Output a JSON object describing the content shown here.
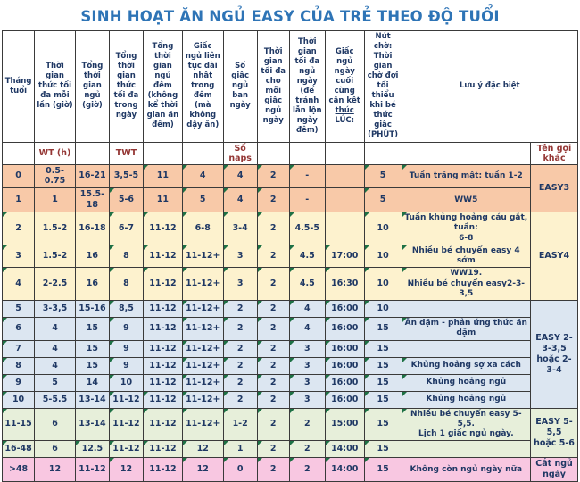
{
  "title": "SINH HOẠT ĂN NGỦ EASY CỦA TRẺ THEO ĐỘ TUỔI",
  "colors": {
    "title": "#2E74B6",
    "header_text": "#1F3864",
    "subheader_text": "#943634",
    "data_text": "#1F3864",
    "marker_green": "#1E7145",
    "band_easy3": "#F8C9A8",
    "band_easy4": "#FDF2CE",
    "band_easy235": "#DCE6F1",
    "band_easy55": "#E7EFDA",
    "band_cut": "#F8C7E1"
  },
  "headers": [
    "Tháng tuổi",
    "Thời gian thức tối đa mỗi lần (giờ)",
    "Tổng thời gian ngủ (giờ)",
    "Tổng thời gian thức tối đa trong ngày",
    "Tổng thời gian ngủ đêm (không kể thời gian ăn đêm)",
    "Giấc ngủ liên tục dài nhất trong đêm (mà không dậy ăn)",
    "Số giấc ngủ ban ngày",
    "Thời gian tối đa cho mỗi giấc ngủ ngày",
    "Thời gian tối đa ngủ ngày (để tránh lẫn lộn ngày đêm)",
    {
      "pre": "Giấc ngủ ngày cuối cùng cần ",
      "u": "kết thúc",
      "post": " LÚC:"
    },
    "Nút chờ: Thời gian chờ đợi tối thiểu khi bé thức giấc (PHÚT)",
    "Lưu ý đặc biệt"
  ],
  "subheader": [
    "",
    "WT (h)",
    "",
    "TWT",
    "",
    "",
    "Số naps",
    "",
    "",
    "",
    "",
    "",
    "Tên gọi khác"
  ],
  "rows": [
    {
      "band": "easy3",
      "tri": [
        4,
        5,
        6,
        7,
        8,
        10,
        11,
        12
      ],
      "cells": [
        "0",
        "0.5-0.75",
        "16-21",
        "3,5-5",
        "11",
        "4",
        "4",
        "2",
        "-",
        "",
        "5",
        "Tuần trăng mật: tuần 1-2"
      ],
      "group": {
        "label": "EASY3",
        "span": 2
      }
    },
    {
      "band": "easy3",
      "tri": [
        3,
        5,
        6,
        7,
        10
      ],
      "cells": [
        "1",
        "1",
        "15.5-18",
        "5-6",
        "11",
        "5",
        "4",
        "2",
        "-",
        "",
        "5",
        "WW5"
      ]
    },
    {
      "band": "easy4",
      "tri": [
        0,
        3,
        4,
        5,
        6,
        7,
        8,
        10,
        11
      ],
      "cells": [
        "2",
        "1.5-2",
        "16-18",
        "6-7",
        "11-12",
        "6-8",
        "3-4",
        "2",
        "4.5-5",
        "",
        "10",
        "Tuần khủng hoảng cáu gắt, tuần:\n6-8"
      ],
      "group": {
        "label": "EASY4",
        "span": 3
      }
    },
    {
      "band": "easy4",
      "tri": [
        0,
        3,
        4,
        5,
        6,
        7,
        8,
        9,
        10,
        11
      ],
      "cells": [
        "3",
        "1.5-2",
        "16",
        "8",
        "11-12",
        "11-12+",
        "3",
        "2",
        "4.5",
        "17:00",
        "10",
        "Nhiều bé chuyển easy 4 sớm"
      ]
    },
    {
      "band": "easy4",
      "tri": [
        0,
        3,
        4,
        5,
        6,
        7,
        8,
        9,
        10,
        11
      ],
      "cells": [
        "4",
        "2-2.5",
        "16",
        "8",
        "11-12",
        "11-12+",
        "3",
        "2",
        "4.5",
        "16:30",
        "10",
        "WW19.\nNhiều bé chuyển easy2-3-3,5"
      ]
    },
    {
      "band": "easy235",
      "tri": [
        3,
        5,
        6,
        7,
        8,
        9,
        10
      ],
      "cells": [
        "5",
        "3-3,5",
        "15-16",
        "8,5",
        "11-12",
        "11-12+",
        "2",
        "2",
        "4",
        "16:00",
        "10",
        ""
      ],
      "group": {
        "label": "EASY 2-3-3,5\nhoặc 2-3-4",
        "span": 6
      }
    },
    {
      "band": "easy235",
      "tri": [
        0,
        3,
        5,
        6,
        7,
        8,
        9,
        10,
        11
      ],
      "cells": [
        "6",
        "4",
        "15",
        "9",
        "11-12",
        "11-12+",
        "2",
        "2",
        "4",
        "16:00",
        "15",
        "Ăn dặm - phản ứng thức ăn dặm"
      ]
    },
    {
      "band": "easy235",
      "tri": [
        0,
        3,
        5,
        6,
        7,
        8,
        9,
        10
      ],
      "cells": [
        "7",
        "4",
        "15",
        "9",
        "11-12",
        "11-12+",
        "2",
        "2",
        "3",
        "16:00",
        "15",
        ""
      ]
    },
    {
      "band": "easy235",
      "tri": [
        0,
        3,
        5,
        6,
        7,
        8,
        9,
        10,
        11
      ],
      "cells": [
        "8",
        "4",
        "15",
        "9",
        "11-12",
        "11-12+",
        "2",
        "2",
        "3",
        "16:00",
        "15",
        "Khủng hoảng sợ xa cách"
      ]
    },
    {
      "band": "easy235",
      "tri": [
        0,
        3,
        5,
        6,
        7,
        8,
        9,
        10,
        11
      ],
      "cells": [
        "9",
        "5",
        "14",
        "10",
        "11-12",
        "11-12+",
        "2",
        "2",
        "3",
        "16:00",
        "15",
        "Khủng hoảng ngủ"
      ]
    },
    {
      "band": "easy235",
      "tri": [
        0,
        3,
        4,
        5,
        6,
        7,
        8,
        9,
        10,
        11
      ],
      "cells": [
        "10",
        "5-5.5",
        "13-14",
        "11-12",
        "11-12",
        "11-12+",
        "2",
        "2",
        "3",
        "16:00",
        "15",
        "Khủng hoảng ngủ"
      ]
    },
    {
      "band": "easy55",
      "tri": [
        0,
        3,
        4,
        5,
        6,
        7,
        8,
        9,
        10,
        11,
        12
      ],
      "cells": [
        "11-15",
        "6",
        "13-14",
        "11-12",
        "11-12",
        "11-12+",
        "1-2",
        "2",
        "2",
        "15:00",
        "15",
        "Nhiều bé chuyển easy 5-5,5.\nLịch 1 giấc ngủ ngày."
      ],
      "group": {
        "label": "EASY 5-5,5\nhoặc 5-6",
        "span": 2
      }
    },
    {
      "band": "easy55",
      "tri": [
        0,
        2,
        3,
        4,
        5,
        6,
        7,
        8,
        9,
        10
      ],
      "cells": [
        "16-48",
        "6",
        "12.5",
        "11-12",
        "11-12",
        "12",
        "1",
        "2",
        "2",
        "14:00",
        "15",
        ""
      ]
    },
    {
      "band": "cut",
      "tri": [
        3,
        5,
        6,
        7,
        8,
        9,
        10
      ],
      "cells": [
        ">48",
        "12",
        "11-12",
        "12",
        "11-12",
        "12",
        "0",
        "2",
        "2",
        "14:00",
        "15",
        "Không còn ngủ ngày nữa"
      ],
      "group": {
        "label": "Cắt ngủ ngày",
        "span": 1
      }
    }
  ]
}
